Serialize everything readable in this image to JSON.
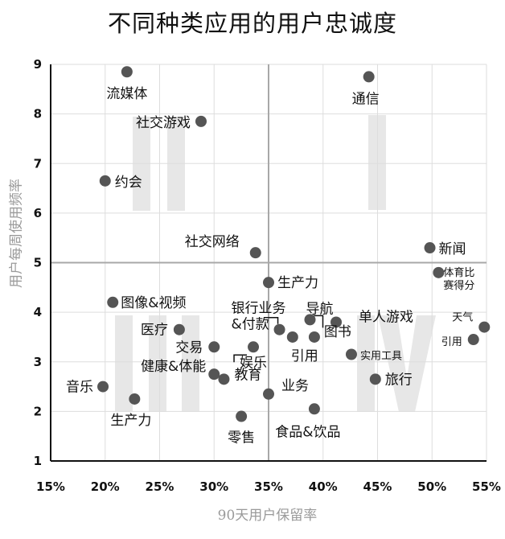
{
  "chart_data": {
    "type": "scatter",
    "title": "不同种类应用的用户忠诚度",
    "xlabel": "90天用户保留率",
    "ylabel": "用户每周使用频率",
    "xlim": [
      15,
      55
    ],
    "ylim": [
      1,
      9
    ],
    "x_ticks": [
      "15%",
      "20%",
      "25%",
      "30%",
      "35%",
      "40%",
      "45%",
      "50%",
      "55%"
    ],
    "y_ticks": [
      "1",
      "2",
      "3",
      "4",
      "5",
      "6",
      "7",
      "8",
      "9"
    ],
    "divider": {
      "x": 35,
      "y": 5
    },
    "quadrant_labels": [
      "I",
      "II",
      "III",
      "IV"
    ],
    "points": [
      {
        "label": "流媒体",
        "x": 22.0,
        "y": 8.85
      },
      {
        "label": "社交游戏",
        "x": 28.8,
        "y": 7.85
      },
      {
        "label": "约会",
        "x": 20.0,
        "y": 6.65
      },
      {
        "label": "通信",
        "x": 44.2,
        "y": 8.75
      },
      {
        "label": "社交网络",
        "x": 33.8,
        "y": 5.2
      },
      {
        "label": "新闻",
        "x": 49.8,
        "y": 5.3
      },
      {
        "label": "体育比赛得分",
        "x": 50.6,
        "y": 4.8
      },
      {
        "label": "天气",
        "x": 54.8,
        "y": 3.7
      },
      {
        "label": "引用",
        "x": 53.8,
        "y": 3.45
      },
      {
        "label": "生产力",
        "x": 35.0,
        "y": 4.6
      },
      {
        "label": "图像&视频",
        "x": 20.7,
        "y": 4.2
      },
      {
        "label": "医疗",
        "x": 26.8,
        "y": 3.65
      },
      {
        "label": "银行业务&付款",
        "x": 36.0,
        "y": 3.65
      },
      {
        "label": "导航",
        "x": 38.8,
        "y": 3.85
      },
      {
        "label": "单人游戏",
        "x": 41.2,
        "y": 3.8
      },
      {
        "label": "图书",
        "x": 39.2,
        "y": 3.5
      },
      {
        "label": "引用",
        "x": 37.2,
        "y": 3.5
      },
      {
        "label": "实用工具",
        "x": 42.6,
        "y": 3.15
      },
      {
        "label": "交易",
        "x": 30.0,
        "y": 3.3
      },
      {
        "label": "娱乐",
        "x": 33.6,
        "y": 3.3
      },
      {
        "label": "健康&体能",
        "x": 30.0,
        "y": 2.75
      },
      {
        "label": "教育",
        "x": 30.9,
        "y": 2.65
      },
      {
        "label": "旅行",
        "x": 44.8,
        "y": 2.65
      },
      {
        "label": "音乐",
        "x": 19.8,
        "y": 2.5
      },
      {
        "label": "生产力",
        "x": 22.7,
        "y": 2.25
      },
      {
        "label": "业务",
        "x": 35.0,
        "y": 2.35
      },
      {
        "label": "食品&饮品",
        "x": 39.2,
        "y": 2.05
      },
      {
        "label": "零售",
        "x": 32.5,
        "y": 1.9
      }
    ]
  }
}
